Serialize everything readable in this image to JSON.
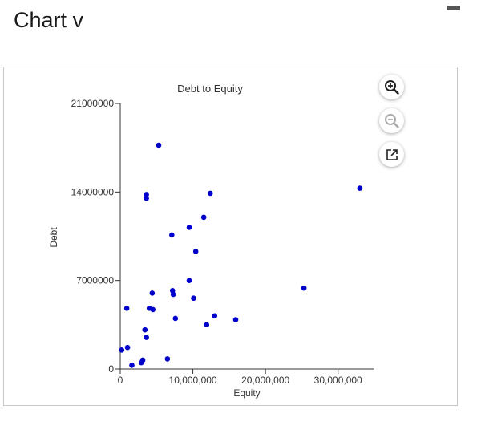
{
  "page": {
    "title": "Chart v"
  },
  "toolbar": {
    "zoom_in_icon": "zoom-in-icon",
    "zoom_out_icon": "zoom-out-icon",
    "popout_icon": "open-external-icon"
  },
  "colors": {
    "point": "#0000cc",
    "axis": "#333333",
    "text": "#333333"
  },
  "chart_data": {
    "type": "scatter",
    "title": "Debt to Equity",
    "xlabel": "Equity",
    "ylabel": "Debt",
    "xlim": [
      0,
      35000000
    ],
    "ylim": [
      0,
      21000000
    ],
    "x_ticks": [
      0,
      10000000,
      20000000,
      30000000
    ],
    "x_tick_labels": [
      "0",
      "10,000,000",
      "20,000,000",
      "30,000,000"
    ],
    "y_ticks": [
      0,
      7000000,
      14000000,
      21000000
    ],
    "y_tick_labels": [
      "0",
      "7000000",
      "14000000",
      "21000000"
    ],
    "grid": false,
    "points": [
      [
        5300000,
        17700000
      ],
      [
        3600000,
        13800000
      ],
      [
        3600000,
        13500000
      ],
      [
        12400000,
        13900000
      ],
      [
        33000000,
        14300000
      ],
      [
        11500000,
        12000000
      ],
      [
        9500000,
        11200000
      ],
      [
        7100000,
        10600000
      ],
      [
        10400000,
        9300000
      ],
      [
        9500000,
        7000000
      ],
      [
        25300000,
        6400000
      ],
      [
        7200000,
        6200000
      ],
      [
        4400000,
        6000000
      ],
      [
        7300000,
        5900000
      ],
      [
        10100000,
        5600000
      ],
      [
        900000,
        4800000
      ],
      [
        4000000,
        4800000
      ],
      [
        4500000,
        4700000
      ],
      [
        13000000,
        4200000
      ],
      [
        7600000,
        4000000
      ],
      [
        15900000,
        3900000
      ],
      [
        11900000,
        3500000
      ],
      [
        3400000,
        3100000
      ],
      [
        3600000,
        2500000
      ],
      [
        1000000,
        1700000
      ],
      [
        200000,
        1500000
      ],
      [
        3100000,
        700000
      ],
      [
        2900000,
        500000
      ],
      [
        6500000,
        800000
      ],
      [
        1600000,
        300000
      ]
    ]
  }
}
